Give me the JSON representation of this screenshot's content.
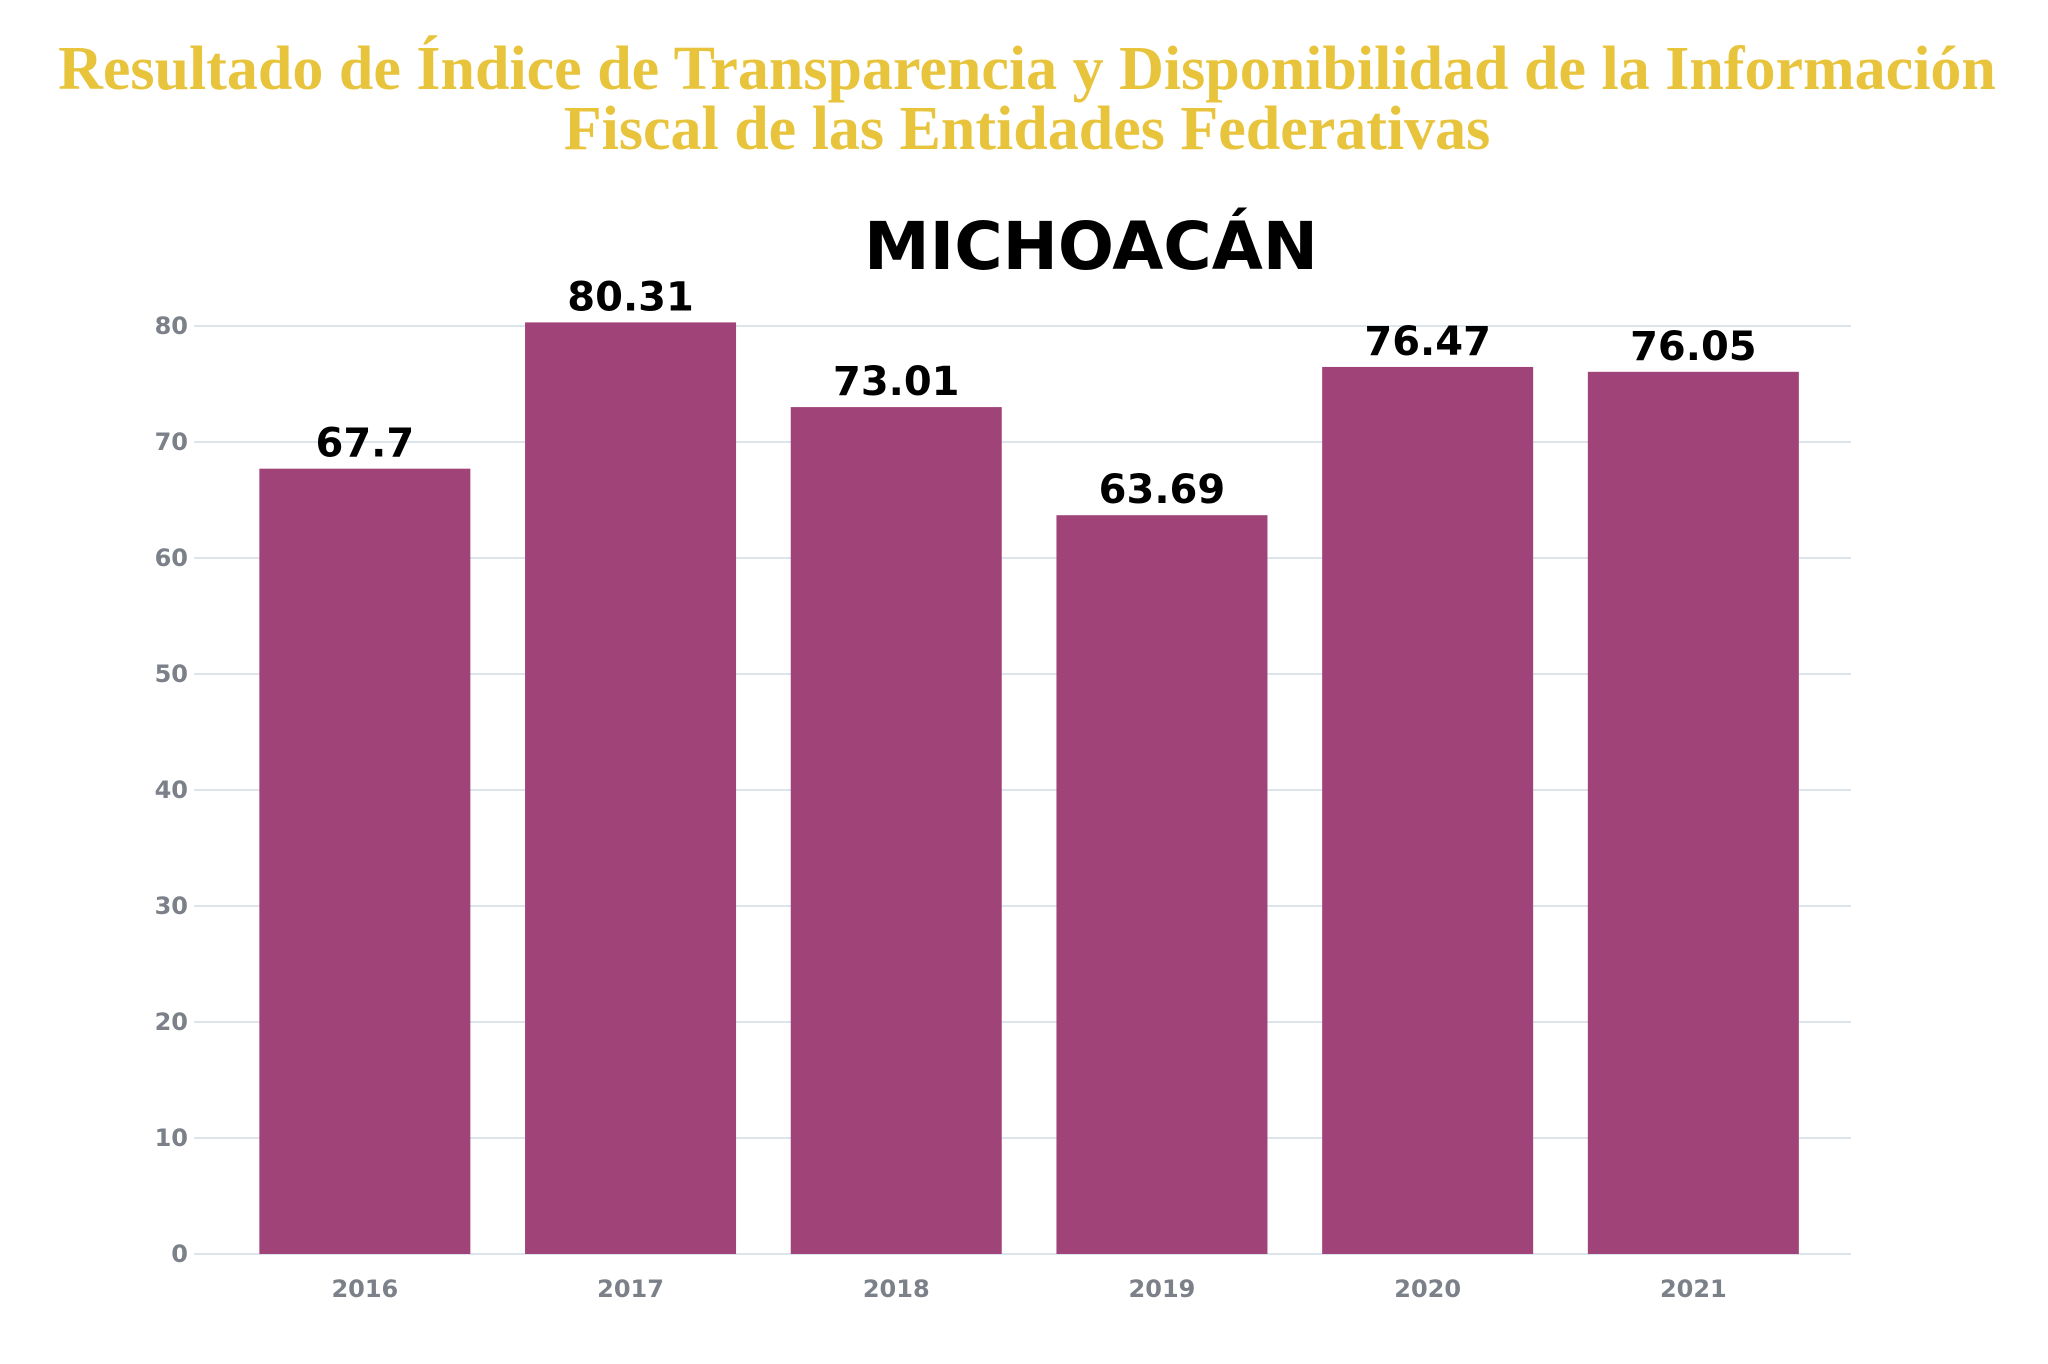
{
  "page": {
    "title_line1": "Resultado de Índice de Transparencia y Disponibilidad de la Información",
    "title_line2": "Fiscal de las Entidades Federativas"
  },
  "colors": {
    "title": "#E8C33C",
    "bar": "#A04378",
    "grid": "#DCE4EC",
    "tick": "#7B8089",
    "value_label": "#000000"
  },
  "chart_data": {
    "type": "bar",
    "title": "MICHOACÁN",
    "categories": [
      "2016",
      "2017",
      "2018",
      "2019",
      "2020",
      "2021"
    ],
    "values": [
      67.7,
      80.31,
      73.01,
      63.69,
      76.47,
      76.05
    ],
    "yticks": [
      0,
      10,
      20,
      30,
      40,
      50,
      60,
      70,
      80
    ],
    "ylim": [
      0,
      80
    ],
    "xlabel": "",
    "ylabel": "",
    "grid": true,
    "legend": "none",
    "data_labels": true
  }
}
